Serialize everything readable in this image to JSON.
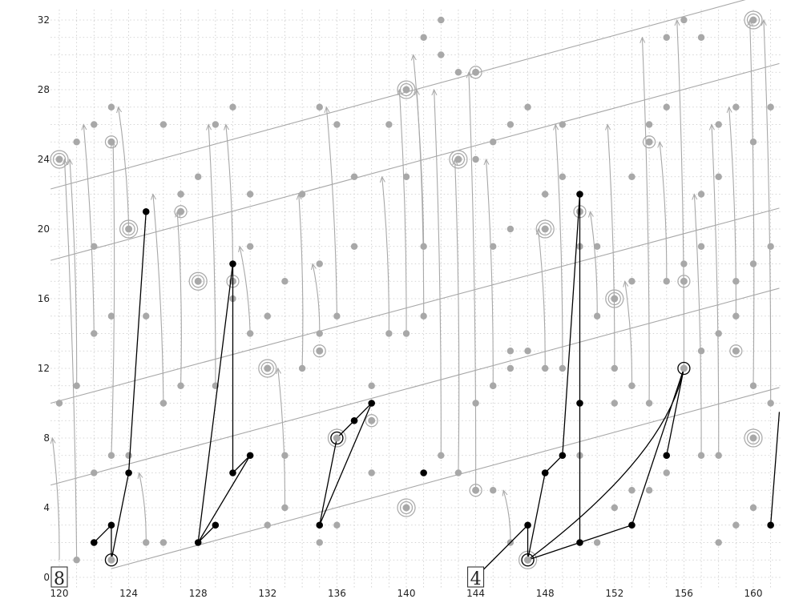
{
  "chart_data": {
    "type": "scatter",
    "title": "",
    "xlabel": "",
    "ylabel": "",
    "xlim": [
      119.5,
      161.6
    ],
    "ylim": [
      -0.7,
      32.6
    ],
    "xticks": [
      120,
      124,
      128,
      132,
      136,
      140,
      144,
      148,
      152,
      156,
      160
    ],
    "yticks": [
      0,
      4,
      8,
      12,
      16,
      20,
      24,
      28,
      32
    ],
    "grid": true,
    "annotations": [
      {
        "text": "8",
        "x": 120,
        "y": 0,
        "style": "boxed"
      },
      {
        "text": "4",
        "x": 144,
        "y": 0,
        "style": "boxed"
      }
    ],
    "colors": {
      "gray": "#a8a8a8",
      "black": "#000000",
      "grid": "#c8c8c8"
    },
    "gray_lines": [
      [
        [
          119.5,
          22.3
        ],
        [
          161.5,
          33.7
        ]
      ],
      [
        [
          119.5,
          18.2
        ],
        [
          161.5,
          29.5
        ]
      ],
      [
        [
          119.5,
          10.0
        ],
        [
          161.5,
          21.2
        ]
      ],
      [
        [
          119.5,
          5.3
        ],
        [
          161.5,
          16.6
        ]
      ],
      [
        [
          123.0,
          0.5
        ],
        [
          161.5,
          10.9
        ]
      ]
    ],
    "gray_points": [
      [
        120,
        10
      ],
      [
        121,
        11
      ],
      [
        121,
        1
      ],
      [
        122,
        2
      ],
      [
        122,
        6
      ],
      [
        123,
        7
      ],
      [
        124,
        7
      ],
      [
        125,
        2
      ],
      [
        121,
        25
      ],
      [
        122,
        26
      ],
      [
        123,
        27
      ],
      [
        122,
        19
      ],
      [
        122,
        14
      ],
      [
        123,
        15
      ],
      [
        125,
        15
      ],
      [
        126,
        10
      ],
      [
        127,
        11
      ],
      [
        127,
        22
      ],
      [
        128,
        23
      ],
      [
        126,
        26
      ],
      [
        127,
        22
      ],
      [
        129,
        26
      ],
      [
        130,
        27
      ],
      [
        126,
        2
      ],
      [
        129,
        11
      ],
      [
        130,
        16
      ],
      [
        131,
        19
      ],
      [
        131,
        22
      ],
      [
        132,
        3
      ],
      [
        133,
        4
      ],
      [
        133,
        7
      ],
      [
        134,
        22
      ],
      [
        135,
        27
      ],
      [
        136,
        26
      ],
      [
        135,
        18
      ],
      [
        135,
        14
      ],
      [
        136,
        15
      ],
      [
        137,
        19
      ],
      [
        137,
        23
      ],
      [
        139,
        26
      ],
      [
        140,
        23
      ],
      [
        141,
        19
      ],
      [
        142,
        7
      ],
      [
        143,
        6
      ],
      [
        139,
        14
      ],
      [
        140,
        14
      ],
      [
        141,
        15
      ],
      [
        134,
        12
      ],
      [
        133,
        17
      ],
      [
        131,
        14
      ],
      [
        132,
        15
      ],
      [
        135,
        2
      ],
      [
        136,
        3
      ],
      [
        138,
        6
      ],
      [
        138,
        11
      ],
      [
        141,
        31
      ],
      [
        142,
        32
      ],
      [
        142,
        30
      ],
      [
        143,
        29
      ],
      [
        144,
        24
      ],
      [
        145,
        25
      ],
      [
        146,
        26
      ],
      [
        147,
        27
      ],
      [
        145,
        19
      ],
      [
        146,
        20
      ],
      [
        145,
        11
      ],
      [
        146,
        12
      ],
      [
        147,
        13
      ],
      [
        148,
        22
      ],
      [
        149,
        26
      ],
      [
        149,
        23
      ],
      [
        150,
        19
      ],
      [
        151,
        19
      ],
      [
        151,
        15
      ],
      [
        152,
        16
      ],
      [
        153,
        17
      ],
      [
        153,
        23
      ],
      [
        154,
        26
      ],
      [
        155,
        27
      ],
      [
        144,
        10
      ],
      [
        145,
        11
      ],
      [
        146,
        13
      ],
      [
        148,
        12
      ],
      [
        149,
        12
      ],
      [
        152,
        12
      ],
      [
        153,
        11
      ],
      [
        154,
        10
      ],
      [
        155,
        17
      ],
      [
        156,
        18
      ],
      [
        157,
        19
      ],
      [
        157,
        22
      ],
      [
        158,
        23
      ],
      [
        158,
        26
      ],
      [
        159,
        27
      ],
      [
        160,
        25
      ],
      [
        155,
        31
      ],
      [
        156,
        32
      ],
      [
        157,
        31
      ],
      [
        159,
        17
      ],
      [
        160,
        18
      ],
      [
        161,
        19
      ],
      [
        161,
        27
      ],
      [
        156,
        12
      ],
      [
        157,
        13
      ],
      [
        158,
        14
      ],
      [
        159,
        15
      ],
      [
        160,
        11
      ],
      [
        161,
        10
      ],
      [
        145,
        5
      ],
      [
        146,
        2
      ],
      [
        147,
        3
      ],
      [
        148,
        6
      ],
      [
        150,
        7
      ],
      [
        151,
        2
      ],
      [
        152,
        4
      ],
      [
        154,
        5
      ],
      [
        155,
        6
      ],
      [
        157,
        7
      ],
      [
        158,
        7
      ],
      [
        159,
        3
      ],
      [
        160,
        4
      ],
      [
        161,
        3
      ],
      [
        158,
        2
      ],
      [
        153,
        5
      ],
      [
        152,
        10
      ]
    ],
    "gray_rings": [
      [
        120,
        24,
        2
      ],
      [
        124,
        20,
        2
      ],
      [
        123,
        25,
        1
      ],
      [
        127,
        21,
        1
      ],
      [
        128,
        17,
        2
      ],
      [
        130,
        17,
        1
      ],
      [
        132,
        12,
        2
      ],
      [
        135,
        13,
        1
      ],
      [
        140,
        28,
        2
      ],
      [
        144,
        29,
        1
      ],
      [
        143,
        24,
        2
      ],
      [
        140,
        4,
        2
      ],
      [
        138,
        9,
        1
      ],
      [
        144,
        5,
        1
      ],
      [
        148,
        20,
        2
      ],
      [
        150,
        21,
        1
      ],
      [
        152,
        16,
        2
      ],
      [
        154,
        25,
        1
      ],
      [
        156,
        17,
        1
      ],
      [
        160,
        32,
        2
      ],
      [
        159,
        13,
        1
      ],
      [
        160,
        8,
        2
      ],
      [
        136,
        8,
        2
      ],
      [
        147,
        1,
        2
      ]
    ],
    "black_points": [
      [
        122,
        2
      ],
      [
        123,
        3
      ],
      [
        124,
        6
      ],
      [
        125,
        21
      ],
      [
        128,
        2
      ],
      [
        129,
        3
      ],
      [
        130,
        6
      ],
      [
        130,
        18
      ],
      [
        131,
        7
      ],
      [
        135,
        3
      ],
      [
        137,
        9
      ],
      [
        138,
        10
      ],
      [
        141,
        6
      ],
      [
        147,
        3
      ],
      [
        148,
        6
      ],
      [
        149,
        7
      ],
      [
        150,
        22
      ],
      [
        150,
        10
      ],
      [
        150,
        2
      ],
      [
        153,
        3
      ],
      [
        155,
        7
      ],
      [
        161,
        3
      ]
    ],
    "black_rings": [
      [
        123,
        1
      ],
      [
        136,
        8
      ],
      [
        147,
        1
      ],
      [
        156,
        12
      ]
    ],
    "black_lines": [
      [
        [
          122,
          2
        ],
        [
          123,
          3
        ],
        [
          123,
          1
        ],
        [
          124,
          6
        ],
        [
          125,
          21
        ]
      ],
      [
        [
          128,
          2
        ],
        [
          130,
          18
        ],
        [
          130,
          6
        ],
        [
          131,
          7
        ],
        [
          128,
          2
        ],
        [
          129,
          3
        ]
      ],
      [
        [
          135,
          3
        ],
        [
          136,
          8
        ]
      ],
      [
        [
          135,
          3
        ],
        [
          138,
          10
        ],
        [
          137,
          9
        ],
        [
          136,
          8
        ]
      ],
      [
        [
          144,
          0
        ],
        [
          147,
          3
        ],
        [
          147,
          1
        ]
      ],
      [
        [
          147,
          1
        ],
        [
          148,
          6
        ],
        [
          149,
          7
        ],
        [
          150,
          22
        ],
        [
          150,
          2
        ],
        [
          147,
          1
        ]
      ],
      [
        [
          150,
          2
        ],
        [
          153,
          3
        ],
        [
          156,
          12
        ],
        [
          155,
          7
        ]
      ],
      [
        [
          161,
          3
        ],
        [
          161.5,
          9.5
        ]
      ]
    ],
    "black_curves": [
      [
        [
          147,
          1
        ],
        [
          155,
          7
        ],
        [
          156,
          12
        ]
      ]
    ],
    "gray_arrows": [
      [
        [
          120,
          1
        ],
        [
          119.6,
          8
        ]
      ],
      [
        [
          121,
          1
        ],
        [
          120.3,
          24
        ]
      ],
      [
        [
          121,
          11
        ],
        [
          120.6,
          24
        ]
      ],
      [
        [
          122,
          14
        ],
        [
          121.4,
          26
        ]
      ],
      [
        [
          125,
          2
        ],
        [
          124.6,
          6
        ]
      ],
      [
        [
          123,
          7
        ],
        [
          123.1,
          25
        ]
      ],
      [
        [
          124,
          20
        ],
        [
          123.4,
          27
        ]
      ],
      [
        [
          126,
          10
        ],
        [
          125.4,
          22
        ]
      ],
      [
        [
          127,
          11
        ],
        [
          126.8,
          21
        ]
      ],
      [
        [
          129,
          11
        ],
        [
          128.6,
          26
        ]
      ],
      [
        [
          130,
          17
        ],
        [
          129.6,
          26
        ]
      ],
      [
        [
          131,
          14
        ],
        [
          130.4,
          19
        ]
      ],
      [
        [
          133,
          4
        ],
        [
          132.6,
          12
        ]
      ],
      [
        [
          134,
          12
        ],
        [
          133.8,
          22
        ]
      ],
      [
        [
          135,
          14
        ],
        [
          134.6,
          18
        ]
      ],
      [
        [
          136,
          15
        ],
        [
          135.4,
          27
        ]
      ],
      [
        [
          139,
          14
        ],
        [
          138.6,
          23
        ]
      ],
      [
        [
          140,
          14
        ],
        [
          139.6,
          28
        ]
      ],
      [
        [
          141,
          15
        ],
        [
          140.6,
          28
        ]
      ],
      [
        [
          141,
          19
        ],
        [
          140.4,
          30
        ]
      ],
      [
        [
          142,
          7
        ],
        [
          141.6,
          28
        ]
      ],
      [
        [
          143,
          6
        ],
        [
          142.8,
          24
        ]
      ],
      [
        [
          144,
          5
        ],
        [
          143.6,
          29
        ]
      ],
      [
        [
          145,
          11
        ],
        [
          144.6,
          24
        ]
      ],
      [
        [
          146,
          2
        ],
        [
          145.6,
          5
        ]
      ],
      [
        [
          148,
          12
        ],
        [
          147.6,
          20
        ]
      ],
      [
        [
          149,
          12
        ],
        [
          148.6,
          26
        ]
      ],
      [
        [
          151,
          15
        ],
        [
          150.6,
          21
        ]
      ],
      [
        [
          152,
          12
        ],
        [
          151.6,
          26
        ]
      ],
      [
        [
          153,
          11
        ],
        [
          152.6,
          17
        ]
      ],
      [
        [
          154,
          10
        ],
        [
          153.6,
          31
        ]
      ],
      [
        [
          155,
          17
        ],
        [
          154.6,
          25
        ]
      ],
      [
        [
          156,
          12
        ],
        [
          155.6,
          32
        ]
      ],
      [
        [
          157,
          7
        ],
        [
          156.6,
          22
        ]
      ],
      [
        [
          158,
          7
        ],
        [
          157.6,
          26
        ]
      ],
      [
        [
          159,
          15
        ],
        [
          158.6,
          27
        ]
      ],
      [
        [
          160,
          11
        ],
        [
          159.8,
          32
        ]
      ],
      [
        [
          161,
          10
        ],
        [
          160.6,
          32
        ]
      ]
    ]
  }
}
